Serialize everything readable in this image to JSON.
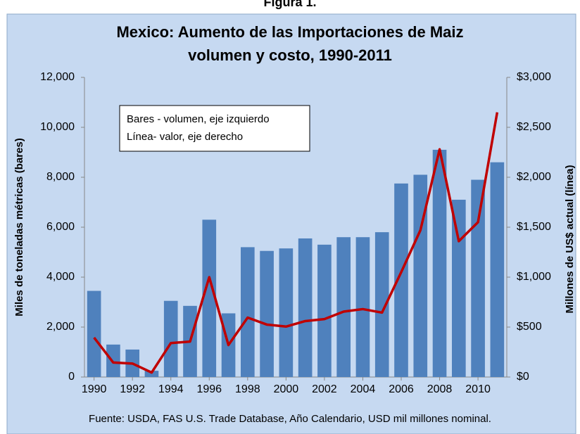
{
  "header": "Figura 1.",
  "chart_data": {
    "type": "bar-line",
    "title": [
      "Mexico: Aumento de las Importaciones de Maiz",
      "volumen y costo, 1990-2011"
    ],
    "y_label": "Miles de toneladas métricas (bares)",
    "y2_label": "Millones de US$ actual (línea)",
    "annotation": [
      "Bares - volumen, eje izquierdo",
      "Línea- valor, eje derecho"
    ],
    "source": "Fuente:  USDA, FAS U.S. Trade Database, Año Calendario, USD mil millones nominal.",
    "x": [
      1990,
      1991,
      1992,
      1993,
      1994,
      1995,
      1996,
      1997,
      1998,
      1999,
      2000,
      2001,
      2002,
      2003,
      2004,
      2005,
      2006,
      2007,
      2008,
      2009,
      2010,
      2011
    ],
    "xlim": [
      1989.5,
      2011.5
    ],
    "xticks": [
      1990,
      1992,
      1994,
      1996,
      1998,
      2000,
      2002,
      2004,
      2006,
      2008,
      2010
    ],
    "ylim": [
      0,
      12000
    ],
    "yticks": [
      0,
      {
        "value": 2000,
        "label": "2,000"
      },
      {
        "value": 4000,
        "label": "4,000"
      },
      {
        "value": 6000,
        "label": "6,000"
      },
      {
        "value": 8000,
        "label": "8,000"
      },
      {
        "value": 10000,
        "label": "10,000"
      },
      {
        "value": 12000,
        "label": "12,000"
      }
    ],
    "y2lim": [
      0,
      3000
    ],
    "y2ticks": [
      {
        "value": 0,
        "label": "$0"
      },
      {
        "value": 500,
        "label": "$500"
      },
      {
        "value": 1000,
        "label": "$1,000"
      },
      {
        "value": 1500,
        "label": "$1,500"
      },
      {
        "value": 2000,
        "label": "$2,000"
      },
      {
        "value": 2500,
        "label": "$2,500"
      },
      {
        "value": 3000,
        "label": "$3,000"
      }
    ],
    "series": [
      {
        "type": "bar",
        "color": "#4f81bd",
        "values": [
          3450,
          1300,
          1100,
          250,
          3050,
          2850,
          6300,
          2550,
          5200,
          5050,
          5150,
          5550,
          5300,
          5600,
          5600,
          5800,
          7750,
          8100,
          9100,
          7100,
          7900,
          8600
        ]
      },
      {
        "type": "line",
        "axis": "y2",
        "color": "#c00000",
        "values": [
          395,
          145,
          135,
          45,
          340,
          355,
          1000,
          320,
          595,
          525,
          505,
          560,
          580,
          655,
          680,
          645,
          1050,
          1470,
          2280,
          1360,
          1550,
          2650
        ]
      }
    ]
  }
}
